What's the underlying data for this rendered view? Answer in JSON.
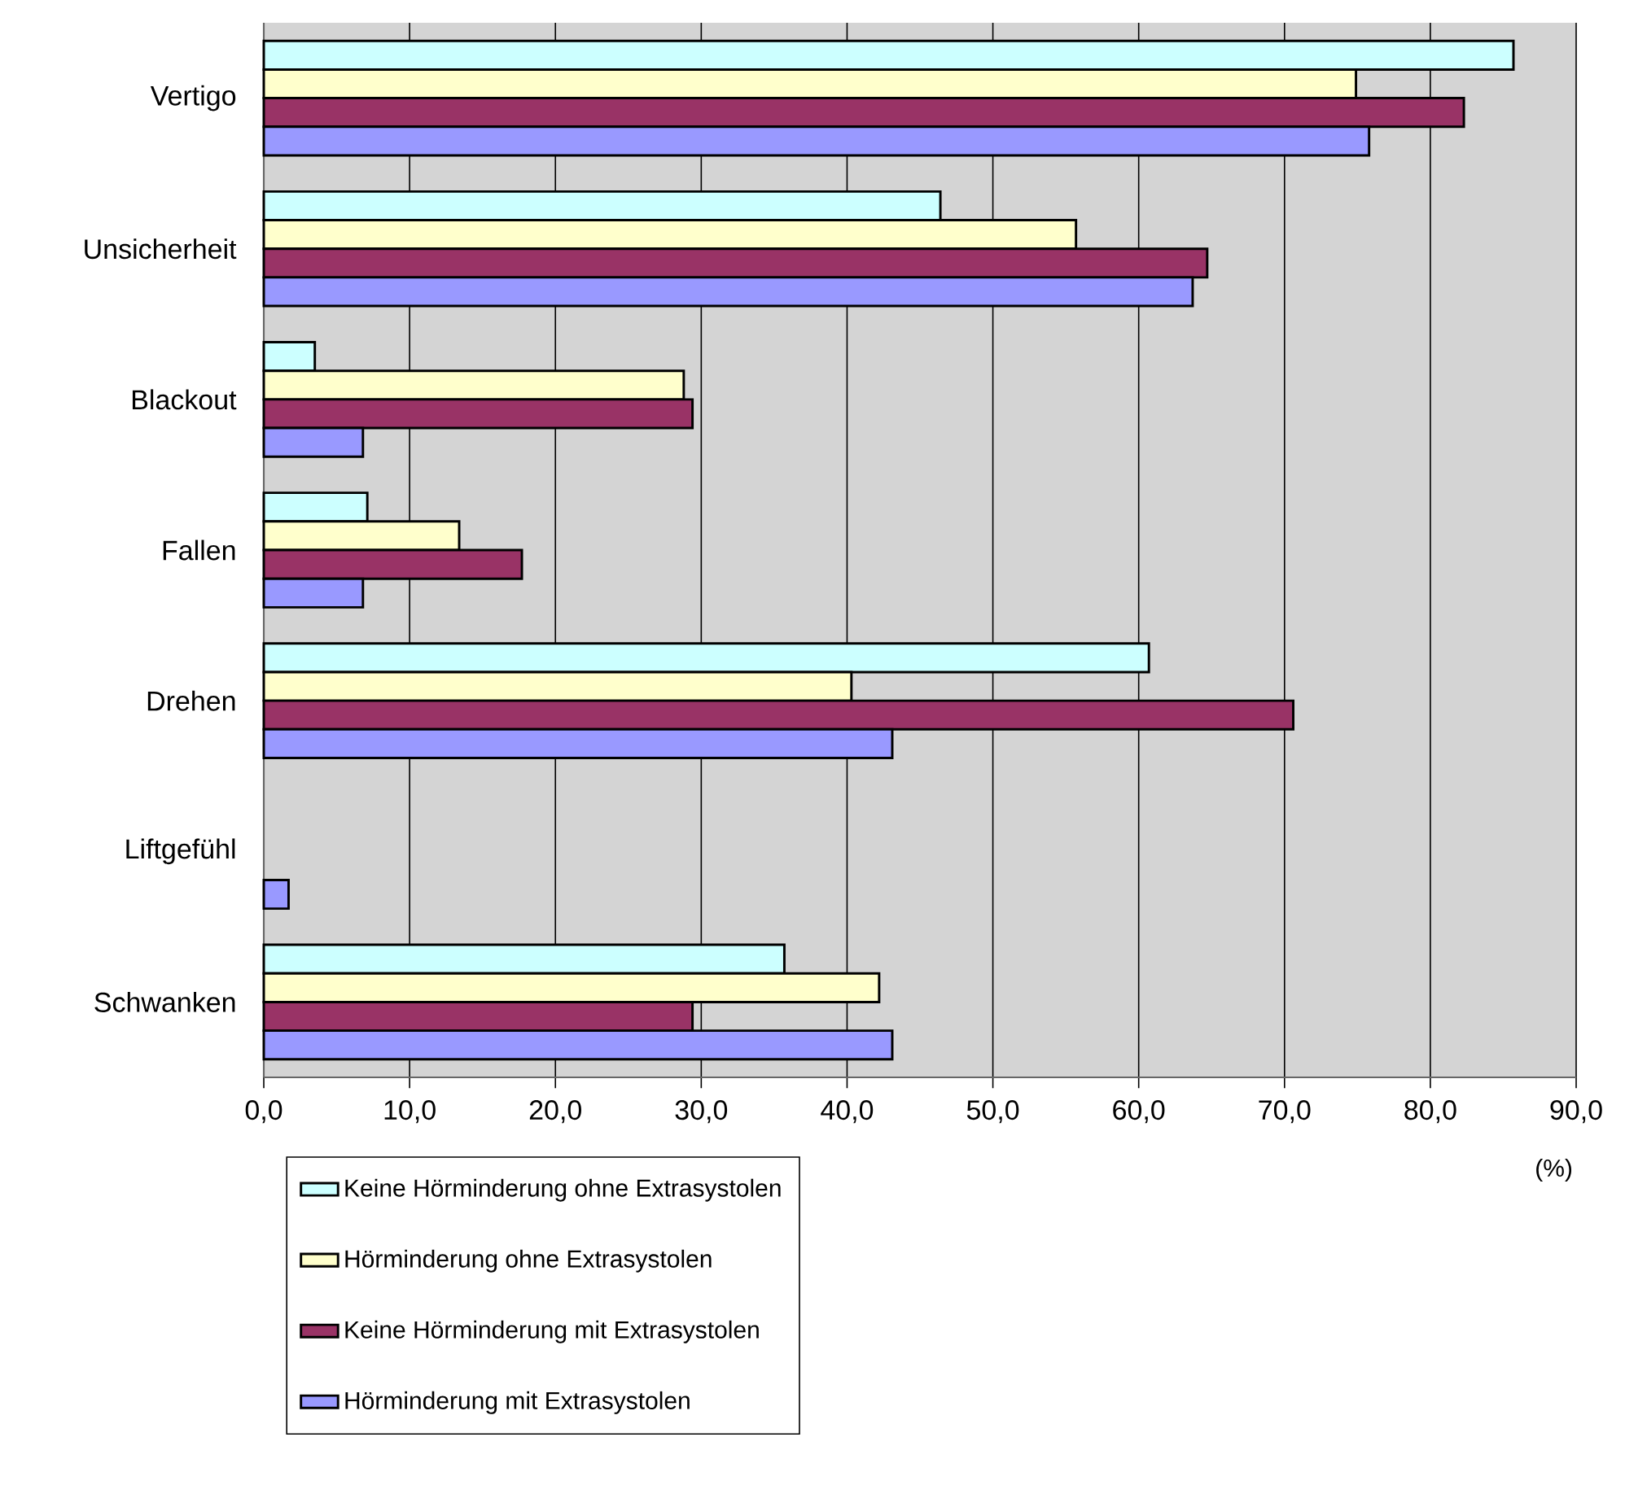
{
  "chart_data": {
    "type": "bar",
    "orientation": "horizontal",
    "categories": [
      "Vertigo",
      "Unsicherheit",
      "Blackout",
      "Fallen",
      "Drehen",
      "Liftgefühl",
      "Schwanken"
    ],
    "series": [
      {
        "name": "Keine Hörminderung ohne Extrasystolen",
        "color": "#ccffff",
        "values": [
          85.7,
          46.4,
          3.5,
          7.1,
          60.7,
          0,
          35.7
        ]
      },
      {
        "name": "Hörminderung ohne Extrasystolen",
        "color": "#ffffcc",
        "values": [
          74.9,
          55.7,
          28.8,
          13.4,
          40.3,
          0,
          42.2
        ]
      },
      {
        "name": "Keine Hörminderung mit Extrasystolen",
        "color": "#993366",
        "values": [
          82.3,
          64.7,
          29.4,
          17.7,
          70.6,
          0,
          29.4
        ]
      },
      {
        "name": "Hörminderung mit Extrasystolen",
        "color": "#9999ff",
        "values": [
          75.8,
          63.7,
          6.8,
          6.8,
          43.1,
          1.7,
          43.1
        ]
      }
    ],
    "xlabel": "(%)",
    "xlim": [
      0,
      90
    ],
    "xticks": [
      {
        "value": 0,
        "label": "0,0"
      },
      {
        "value": 10,
        "label": "10,0"
      },
      {
        "value": 20,
        "label": "20,0"
      },
      {
        "value": 30,
        "label": "30,0"
      },
      {
        "value": 40,
        "label": "40,0"
      },
      {
        "value": 50,
        "label": "50,0"
      },
      {
        "value": 60,
        "label": "60,0"
      },
      {
        "value": 70,
        "label": "70,0"
      },
      {
        "value": 80,
        "label": "80,0"
      },
      {
        "value": 90,
        "label": "90,0"
      }
    ],
    "grid": "x",
    "legend": "bottom"
  }
}
